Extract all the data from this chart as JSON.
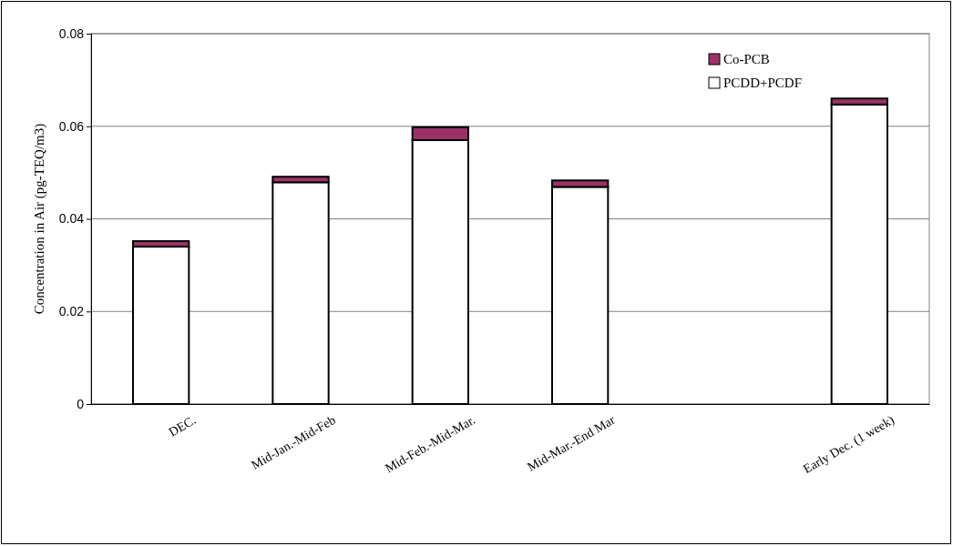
{
  "chart_data": {
    "type": "bar",
    "stacked": true,
    "ylabel": "Concentration in Air (pg-TEQ/m3)",
    "categories": [
      "DEC.",
      "Mid-Jan.-Mid-Feb",
      "Mid-Feb.-Mid-Mar.",
      "Mid-Mar.-End Mar",
      null,
      "Early Dec. (1 week)"
    ],
    "series": [
      {
        "name": "PCDD+PCDF",
        "color": "#ffffff",
        "values": [
          0.034,
          0.0479,
          0.057,
          0.0469,
          null,
          0.0647
        ]
      },
      {
        "name": "Co-PCB",
        "color": "#993366",
        "values": [
          0.0012,
          0.0012,
          0.0028,
          0.0014,
          null,
          0.0013
        ]
      }
    ],
    "ylim": [
      0,
      0.08
    ],
    "yticks": [
      {
        "value": 0,
        "label": "0"
      },
      {
        "value": 0.02,
        "label": "0.02"
      },
      {
        "value": 0.04,
        "label": "0.04"
      },
      {
        "value": 0.06,
        "label": "0.06"
      },
      {
        "value": 0.08,
        "label": "0.08"
      }
    ],
    "grid": "y",
    "legend": "top right"
  }
}
